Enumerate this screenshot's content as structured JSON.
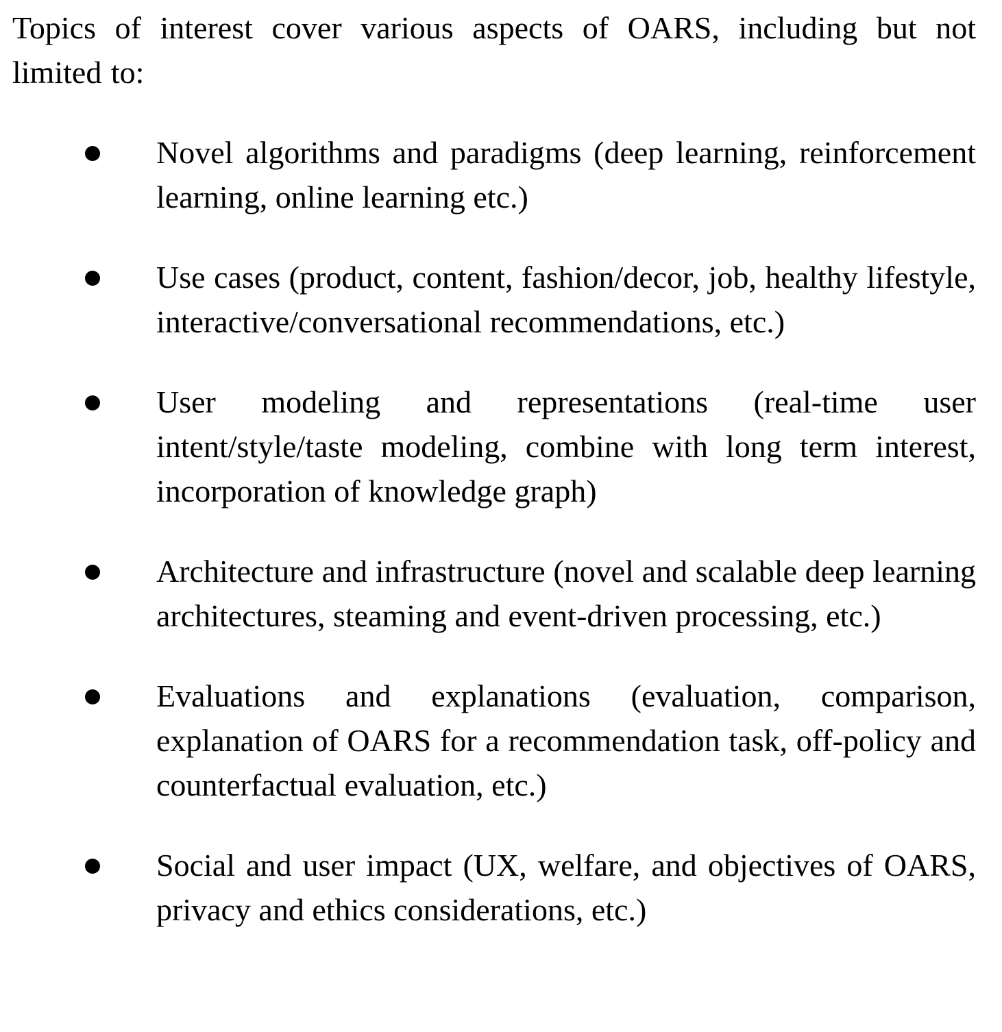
{
  "intro": "Topics of interest cover various aspects of OARS, including but not limited to:",
  "topics": [
    {
      "text": "Novel algorithms and paradigms (deep learning, reinforcement learning, online learning etc.)"
    },
    {
      "text": "Use cases (product, content, fashion/decor, job, healthy lifestyle, interactive/conversational recommendations, etc.)"
    },
    {
      "text": "User modeling and representations (real-time user intent/style/taste modeling, combine with long term interest, incorporation of knowledge graph)"
    },
    {
      "text": "Architecture and infrastructure (novel and scalable deep learning architectures, steaming and event-driven processing, etc.)"
    },
    {
      "text": "Evaluations and explanations (evaluation, comparison, explanation of OARS for a recommendation task, off-policy and counterfactual evaluation, etc.)"
    },
    {
      "text": "Social and user impact (UX, welfare, and objectives of OARS, privacy and ethics considerations, etc.)"
    }
  ],
  "bullet_icon": "filled-circle-bullet"
}
